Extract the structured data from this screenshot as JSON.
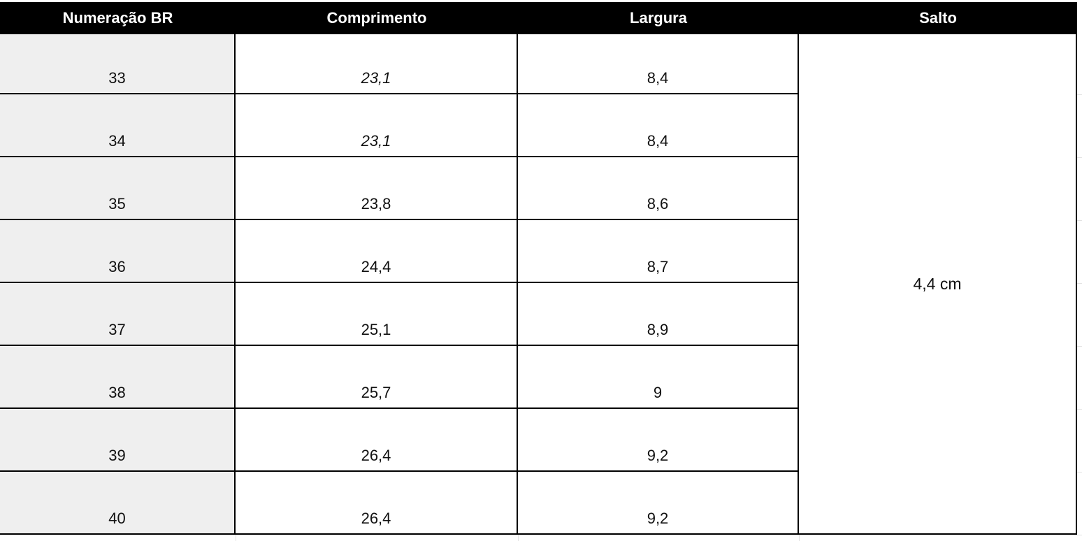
{
  "table": {
    "header": [
      "Numeração BR",
      "Comprimento",
      "Largura",
      "Salto"
    ],
    "rows": [
      [
        "33",
        "23,1",
        "8,4"
      ],
      [
        "34",
        "23,1",
        "8,4"
      ],
      [
        "35",
        "23,8",
        "8,6"
      ],
      [
        "36",
        "24,4",
        "8,7"
      ],
      [
        "37",
        "25,1",
        "8,9"
      ],
      [
        "38",
        "25,7",
        "9"
      ],
      [
        "39",
        "26,4",
        "9,2"
      ],
      [
        "40",
        "26,4",
        "9,2"
      ]
    ],
    "merged_cell": "4,4 cm"
  }
}
